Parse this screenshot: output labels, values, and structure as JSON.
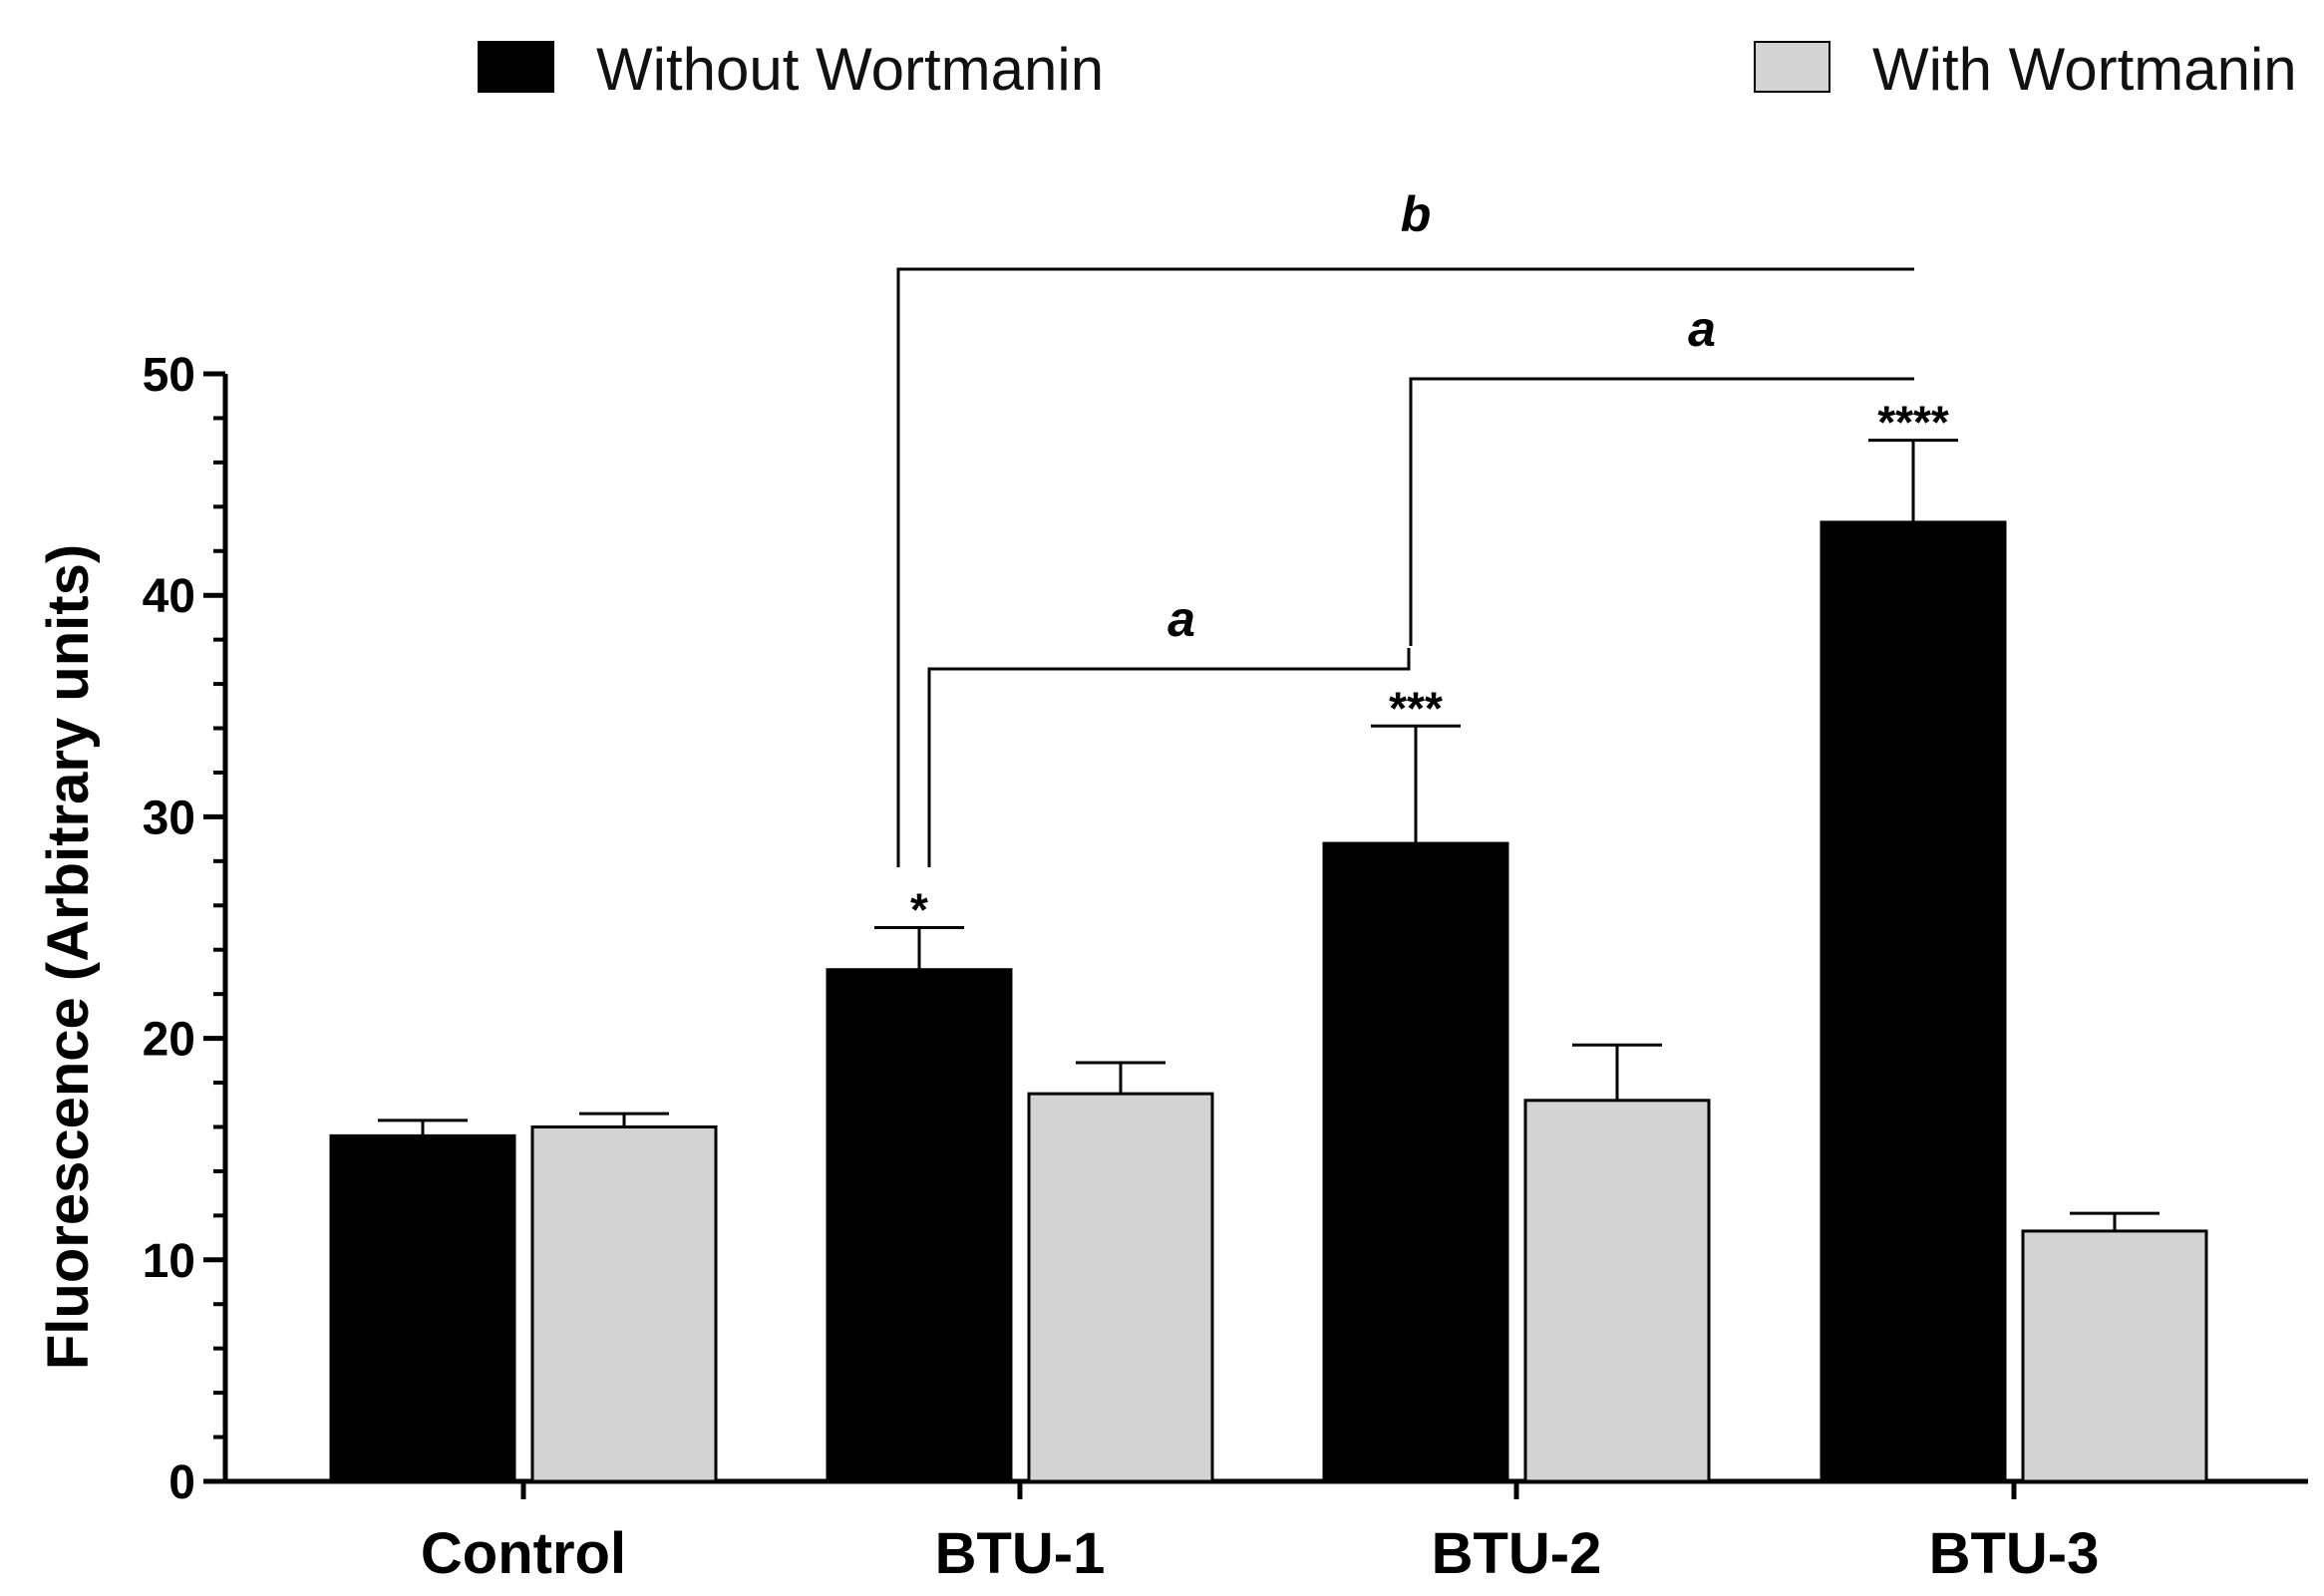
{
  "chart_data": {
    "type": "bar",
    "title": "",
    "xlabel": "",
    "ylabel": "Fluorescence (Arbitrary units)",
    "ylim": [
      0,
      50
    ],
    "yticks": [
      0,
      10,
      20,
      30,
      40,
      50
    ],
    "categories": [
      "Control",
      "BTU-1",
      "BTU-2",
      "BTU-3"
    ],
    "series": [
      {
        "name": "Without Wortmanin",
        "color": "#000000",
        "values": [
          15.6,
          23.1,
          28.8,
          43.3
        ],
        "errors": [
          0.7,
          1.9,
          5.3,
          3.7
        ],
        "significance": [
          "",
          "*",
          "***",
          "****"
        ]
      },
      {
        "name": "With Wortmanin",
        "color": "#d3d3d3",
        "values": [
          16.0,
          17.5,
          17.2,
          11.3
        ],
        "errors": [
          0.6,
          1.4,
          2.5,
          0.8
        ],
        "significance": [
          "",
          "",
          "",
          ""
        ]
      }
    ],
    "comparisons": [
      {
        "label": "a",
        "from": "BTU-1",
        "to": "BTU-2"
      },
      {
        "label": "a",
        "from": "BTU-2",
        "to": "BTU-3"
      },
      {
        "label": "b",
        "from": "BTU-1",
        "to": "BTU-3"
      }
    ],
    "legend_position": "top"
  }
}
